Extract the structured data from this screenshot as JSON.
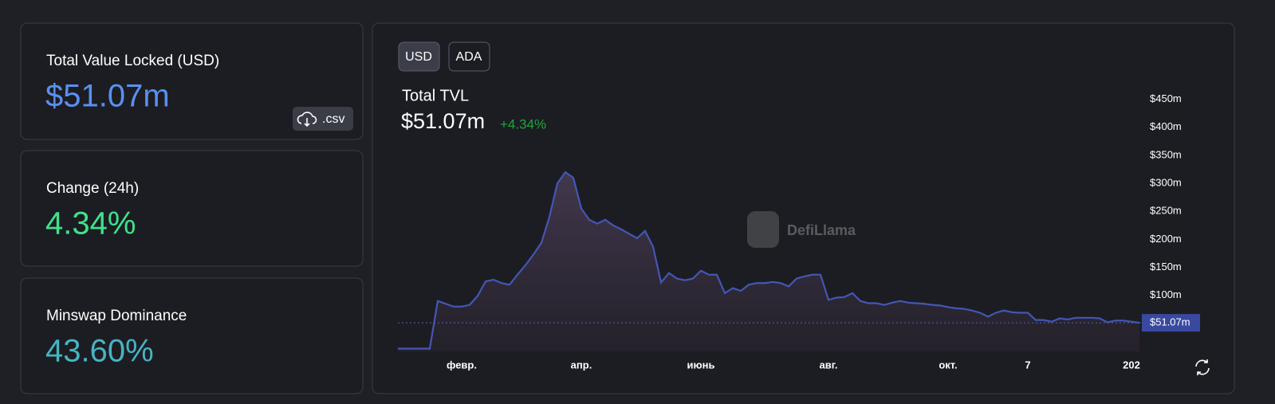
{
  "cards": [
    {
      "label": "Total Value Locked (USD)",
      "value": "$51.07m"
    },
    {
      "label": "Change (24h)",
      "value": "4.34%"
    },
    {
      "label": "Minswap Dominance",
      "value": "43.60%"
    }
  ],
  "csv_button": ".csv",
  "toggle": [
    "USD",
    "ADA"
  ],
  "chart_data": {
    "type": "area",
    "title": "Total TVL",
    "headline_value": "$51.07m",
    "headline_change": "+4.34%",
    "watermark": "DefiLlama",
    "color": "#4456b4",
    "categories": [
      null,
      null,
      null,
      null,
      null,
      null,
      null,
      null,
      "февр.",
      null,
      null,
      null,
      null,
      null,
      null,
      null,
      null,
      null,
      null,
      null,
      null,
      null,
      null,
      "апр.",
      null,
      null,
      null,
      null,
      null,
      null,
      null,
      null,
      null,
      null,
      null,
      null,
      null,
      null,
      "июнь",
      null,
      null,
      null,
      null,
      null,
      null,
      null,
      null,
      null,
      null,
      null,
      null,
      null,
      null,
      null,
      "авг.",
      null,
      null,
      null,
      null,
      null,
      null,
      null,
      null,
      null,
      null,
      null,
      null,
      null,
      null,
      "окт.",
      null,
      null,
      null,
      null,
      null,
      null,
      null,
      null,
      null,
      "7",
      null,
      null,
      null,
      null,
      null,
      null,
      null,
      null,
      null,
      null,
      null,
      null,
      "202",
      null
    ],
    "values": [
      5,
      5,
      5,
      5,
      5,
      90,
      85,
      80,
      80,
      83,
      99,
      125,
      128,
      122,
      119,
      137,
      154,
      173,
      194,
      240,
      300,
      320,
      310,
      255,
      235,
      228,
      235,
      225,
      218,
      210,
      202,
      215,
      187,
      123,
      140,
      130,
      127,
      130,
      144,
      137,
      137,
      104,
      113,
      108,
      119,
      122,
      122,
      124,
      122,
      116,
      130,
      134,
      137,
      137,
      92,
      96,
      97,
      104,
      90,
      86,
      86,
      83,
      87,
      90,
      87,
      86,
      85,
      83,
      82,
      79,
      77,
      76,
      73,
      69,
      62,
      69,
      73,
      70,
      69,
      69,
      56,
      56,
      53,
      59,
      57,
      60,
      60,
      60,
      59,
      52,
      55,
      55,
      53,
      51.07
    ],
    "value_labels_current": "$51.07m",
    "ylim": [
      0,
      485
    ],
    "yticks": [
      {
        "value": 100,
        "label": "$100m"
      },
      {
        "value": 150,
        "label": "$150m"
      },
      {
        "value": 200,
        "label": "$200m"
      },
      {
        "value": 250,
        "label": "$250m"
      },
      {
        "value": 300,
        "label": "$300m"
      },
      {
        "value": 350,
        "label": "$350m"
      },
      {
        "value": 400,
        "label": "$400m"
      },
      {
        "value": 450,
        "label": "$450m"
      }
    ]
  }
}
